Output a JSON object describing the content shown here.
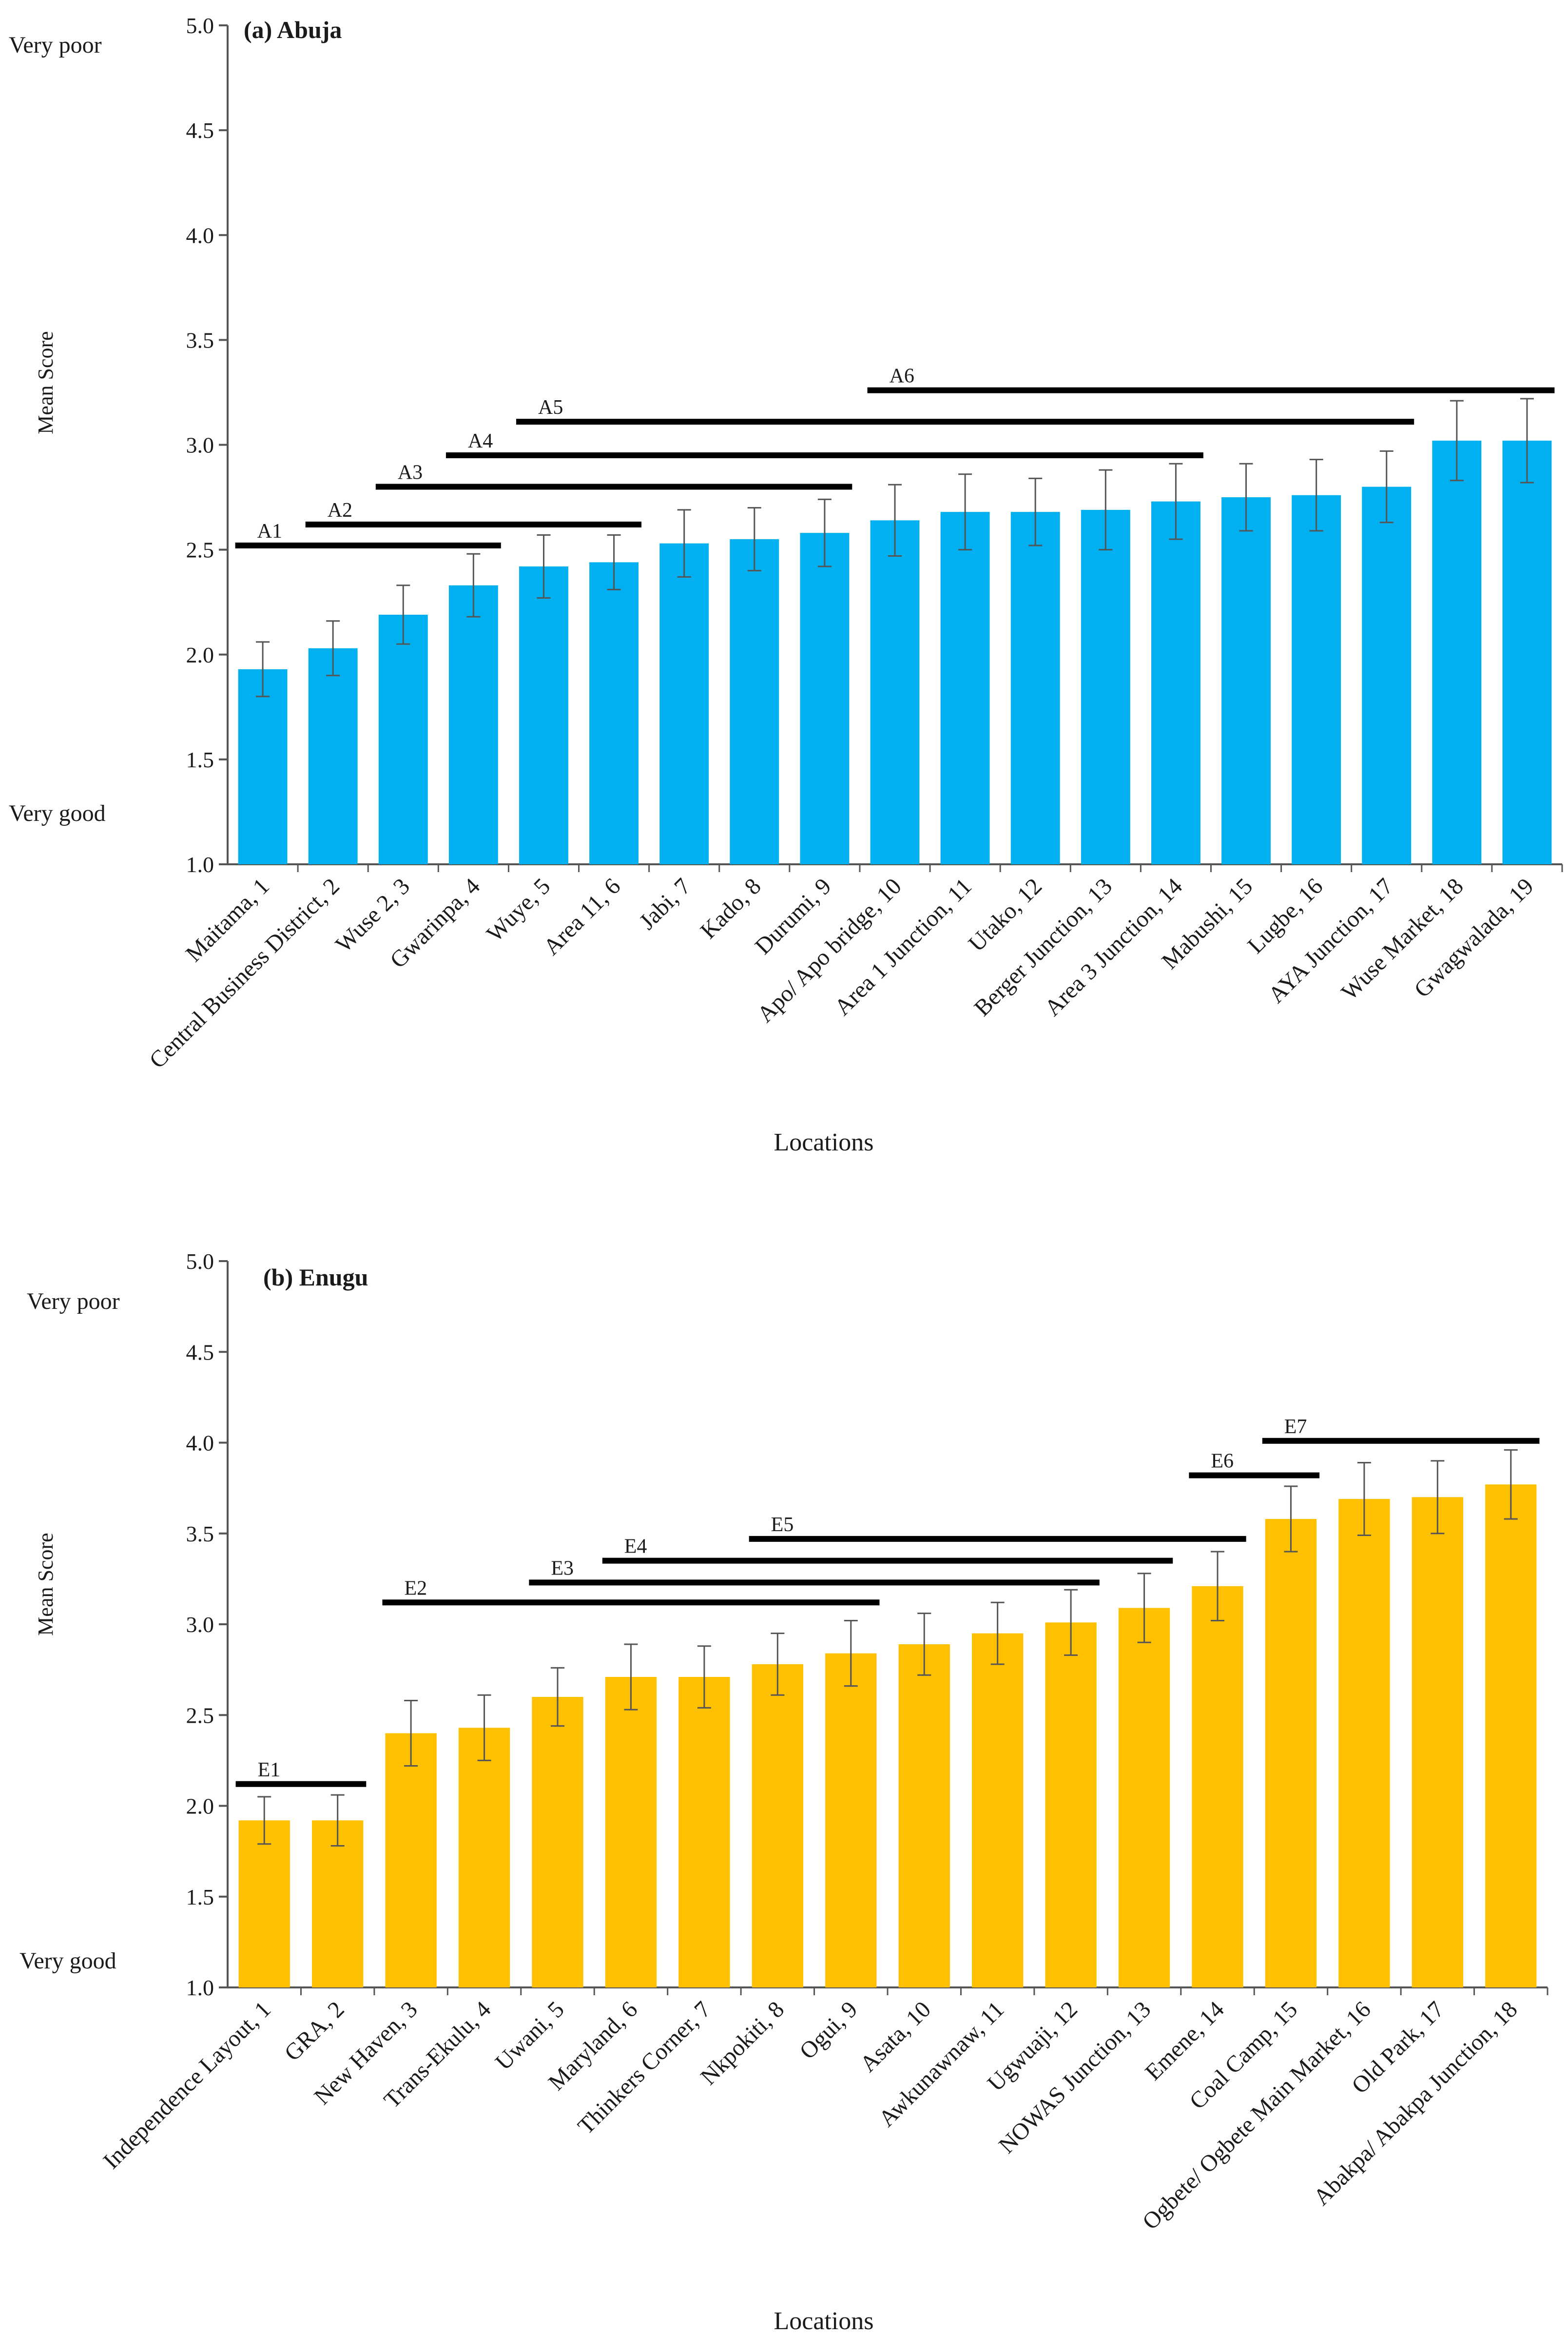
{
  "chart_data": [
    {
      "type": "bar",
      "title": "(a) Abuja",
      "xlabel": "Locations",
      "ylabel": "Mean Score",
      "ylim": [
        1.0,
        5.0
      ],
      "yticks": [
        "1.0",
        "1.5",
        "2.0",
        "2.5",
        "3.0",
        "3.5",
        "4.0",
        "4.5",
        "5.0"
      ],
      "top_qualitative_label": "Very poor",
      "bottom_qualitative_label": "Very good",
      "bar_color": "#00B0F0",
      "categories": [
        "Maitama, 1",
        "Central Business District, 2",
        "Wuse 2, 3",
        "Gwarinpa, 4",
        "Wuye, 5",
        "Area 11, 6",
        "Jabi, 7",
        "Kado, 8",
        "Durumi, 9",
        "Apo/ Apo bridge, 10",
        "Area 1 Junction, 11",
        "Utako, 12",
        "Berger Junction, 13",
        "Area 3 Junction, 14",
        "Mabushi, 15",
        "Lugbe, 16",
        "AYA Junction, 17",
        "Wuse Market, 18",
        "Gwagwalada, 19"
      ],
      "values": [
        1.93,
        2.03,
        2.19,
        2.33,
        2.42,
        2.44,
        2.53,
        2.55,
        2.58,
        2.64,
        2.68,
        2.68,
        2.69,
        2.73,
        2.75,
        2.76,
        2.8,
        3.02,
        3.02
      ],
      "error": [
        0.13,
        0.13,
        0.14,
        0.15,
        0.15,
        0.13,
        0.16,
        0.15,
        0.16,
        0.17,
        0.18,
        0.16,
        0.19,
        0.18,
        0.16,
        0.17,
        0.17,
        0.19,
        0.2
      ],
      "groups": [
        {
          "label": "A1",
          "from": 1,
          "to": 4,
          "y": 2.52
        },
        {
          "label": "A2",
          "from": 2,
          "to": 6,
          "y": 2.62
        },
        {
          "label": "A3",
          "from": 3,
          "to": 9,
          "y": 2.8
        },
        {
          "label": "A4",
          "from": 4,
          "to": 14,
          "y": 2.95
        },
        {
          "label": "A5",
          "from": 5,
          "to": 17,
          "y": 3.11
        },
        {
          "label": "A6",
          "from": 10,
          "to": 19,
          "y": 3.26
        }
      ]
    },
    {
      "type": "bar",
      "title": "(b) Enugu",
      "xlabel": "Locations",
      "ylabel": "Mean Score",
      "ylim": [
        1.0,
        5.0
      ],
      "yticks": [
        "1.0",
        "1.5",
        "2.0",
        "2.5",
        "3.0",
        "3.5",
        "4.0",
        "4.5",
        "5.0"
      ],
      "top_qualitative_label": "Very poor",
      "bottom_qualitative_label": "Very good",
      "bar_color": "#FFC000",
      "categories": [
        "Independence Layout, 1",
        "GRA, 2",
        "New Haven, 3",
        "Trans-Ekulu, 4",
        "Uwani, 5",
        "Maryland, 6",
        "Thinkers Corner, 7",
        "Nkpokiti, 8",
        "Ogui, 9",
        "Asata, 10",
        "Awkunawnaw, 11",
        "Ugwuaji, 12",
        "NOWAS Junction, 13",
        "Emene, 14",
        "Coal Camp, 15",
        "Ogbete/ Ogbete Main Market, 16",
        "Old Park, 17",
        "Abakpa/ Abakpa Junction, 18"
      ],
      "values": [
        1.92,
        1.92,
        2.4,
        2.43,
        2.6,
        2.71,
        2.71,
        2.78,
        2.84,
        2.89,
        2.95,
        3.01,
        3.09,
        3.21,
        3.58,
        3.69,
        3.7,
        3.77
      ],
      "error": [
        0.13,
        0.14,
        0.18,
        0.18,
        0.16,
        0.18,
        0.17,
        0.17,
        0.18,
        0.17,
        0.17,
        0.18,
        0.19,
        0.19,
        0.18,
        0.2,
        0.2,
        0.19
      ],
      "groups": [
        {
          "label": "E1",
          "from": 1,
          "to": 2,
          "y": 2.12
        },
        {
          "label": "E2",
          "from": 3,
          "to": 9,
          "y": 3.12
        },
        {
          "label": "E3",
          "from": 5,
          "to": 12,
          "y": 3.23
        },
        {
          "label": "E4",
          "from": 6,
          "to": 13,
          "y": 3.35
        },
        {
          "label": "E5",
          "from": 8,
          "to": 14,
          "y": 3.47
        },
        {
          "label": "E6",
          "from": 14,
          "to": 15,
          "y": 3.82
        },
        {
          "label": "E7",
          "from": 15,
          "to": 18,
          "y": 4.01
        }
      ]
    }
  ]
}
